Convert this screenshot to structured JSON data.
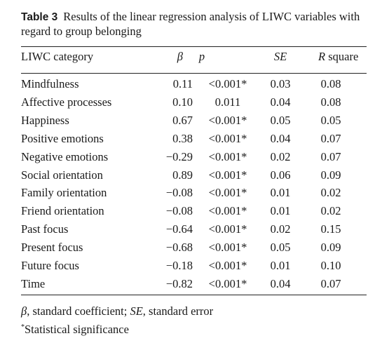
{
  "caption": {
    "label": "Table 3",
    "text": "Results of the linear regression analysis of LIWC variables with regard to group belonging"
  },
  "headers": {
    "category": "LIWC category",
    "beta": "β",
    "p": "p",
    "se": "SE",
    "r_square_prefix": "R",
    "r_square_suffix": " square"
  },
  "rows": [
    {
      "category": "Mindfulness",
      "beta": "0.11",
      "p": "<0.001*",
      "se": "0.03",
      "r2": "0.08"
    },
    {
      "category": "Affective processes",
      "beta": "0.10",
      "p": "0.011",
      "se": "0.04",
      "r2": "0.08"
    },
    {
      "category": "Happiness",
      "beta": "0.67",
      "p": "<0.001*",
      "se": "0.05",
      "r2": "0.05"
    },
    {
      "category": "Positive emotions",
      "beta": "0.38",
      "p": "<0.001*",
      "se": "0.04",
      "r2": "0.07"
    },
    {
      "category": "Negative emotions",
      "beta": "−0.29",
      "p": "<0.001*",
      "se": "0.02",
      "r2": "0.07"
    },
    {
      "category": "Social orientation",
      "beta": "0.89",
      "p": "<0.001*",
      "se": "0.06",
      "r2": "0.09"
    },
    {
      "category": "Family orientation",
      "beta": "−0.08",
      "p": "<0.001*",
      "se": "0.01",
      "r2": "0.02"
    },
    {
      "category": "Friend orientation",
      "beta": "−0.08",
      "p": "<0.001*",
      "se": "0.01",
      "r2": "0.02"
    },
    {
      "category": "Past focus",
      "beta": "−0.64",
      "p": "<0.001*",
      "se": "0.02",
      "r2": "0.15"
    },
    {
      "category": "Present focus",
      "beta": "−0.68",
      "p": "<0.001*",
      "se": "0.05",
      "r2": "0.09"
    },
    {
      "category": "Future focus",
      "beta": "−0.18",
      "p": "<0.001*",
      "se": "0.01",
      "r2": "0.10"
    },
    {
      "category": "Time",
      "beta": "−0.82",
      "p": "<0.001*",
      "se": "0.04",
      "r2": "0.07"
    }
  ],
  "footnotes": {
    "beta_symbol": "β",
    "beta_def": ", standard coefficient; ",
    "se_symbol": "SE",
    "se_def": ", standard error",
    "asterisk": "*",
    "significance": "Statistical significance"
  }
}
